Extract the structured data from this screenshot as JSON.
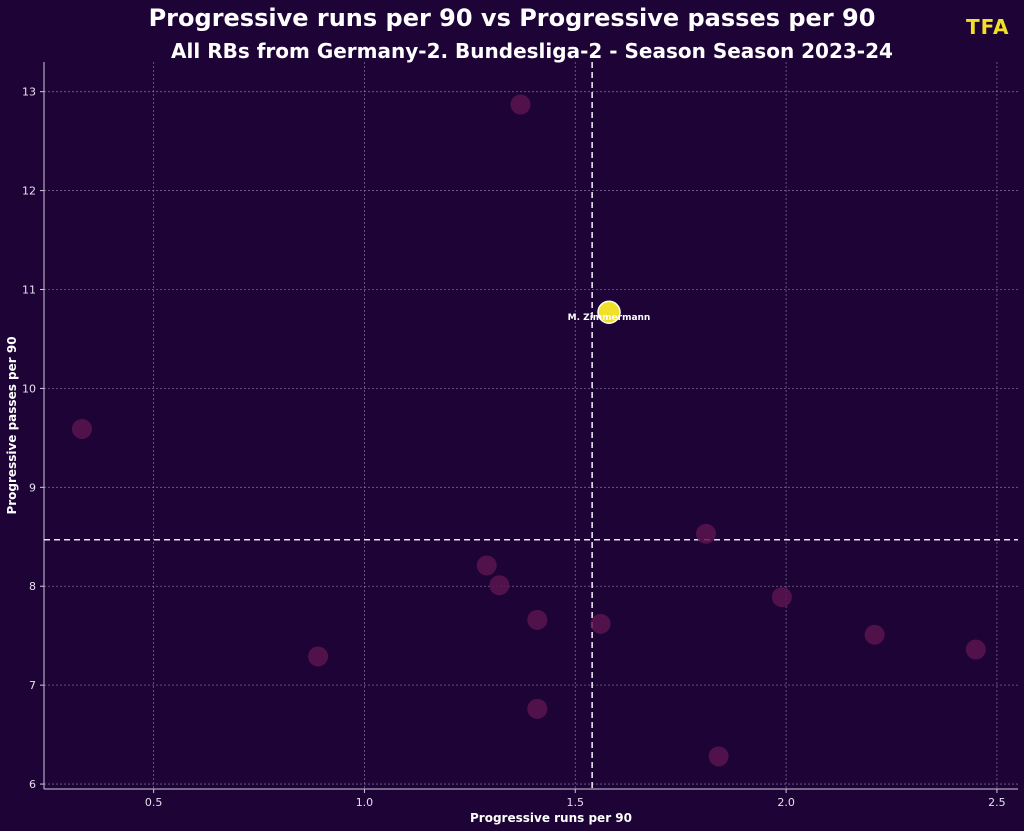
{
  "brand": {
    "logo_text": "TFA",
    "logo_color": "#f1e027"
  },
  "colors": {
    "background": "#1d0336",
    "grid": "#8a7fa3",
    "reference": "#e8e4ef",
    "point": "#5a1550",
    "highlight": "#f1e027",
    "text": "#ffffff"
  },
  "chart_data": {
    "type": "scatter",
    "title": "Progressive runs per 90 vs Progressive passes per 90",
    "subtitle": "All RBs from Germany-2. Bundesliga-2 - Season Season 2023-24",
    "xlabel": "Progressive runs per 90",
    "ylabel": "Progressive passes per 90",
    "xlim": [
      0.24,
      2.55
    ],
    "ylim": [
      5.95,
      13.3
    ],
    "xticks": [
      0.5,
      1.0,
      1.5,
      2.0,
      2.5
    ],
    "xtick_labels": [
      "0.5",
      "1.0",
      "1.5",
      "2.0",
      "2.5"
    ],
    "yticks": [
      6,
      7,
      8,
      9,
      10,
      11,
      12,
      13
    ],
    "ytick_labels": [
      "6",
      "7",
      "8",
      "9",
      "10",
      "11",
      "12",
      "13"
    ],
    "grid": true,
    "reference_lines": {
      "x": 1.54,
      "y": 8.47
    },
    "points": [
      {
        "x": 1.37,
        "y": 12.87
      },
      {
        "x": 0.33,
        "y": 9.59
      },
      {
        "x": 1.81,
        "y": 8.53
      },
      {
        "x": 1.29,
        "y": 8.21
      },
      {
        "x": 1.32,
        "y": 8.01
      },
      {
        "x": 1.99,
        "y": 7.89
      },
      {
        "x": 1.41,
        "y": 7.66
      },
      {
        "x": 1.56,
        "y": 7.62
      },
      {
        "x": 2.21,
        "y": 7.51
      },
      {
        "x": 2.45,
        "y": 7.36
      },
      {
        "x": 0.89,
        "y": 7.29
      },
      {
        "x": 1.41,
        "y": 6.76
      },
      {
        "x": 1.84,
        "y": 6.28
      }
    ],
    "highlight": {
      "x": 1.58,
      "y": 10.77,
      "label": "M. Zimmermann"
    }
  }
}
